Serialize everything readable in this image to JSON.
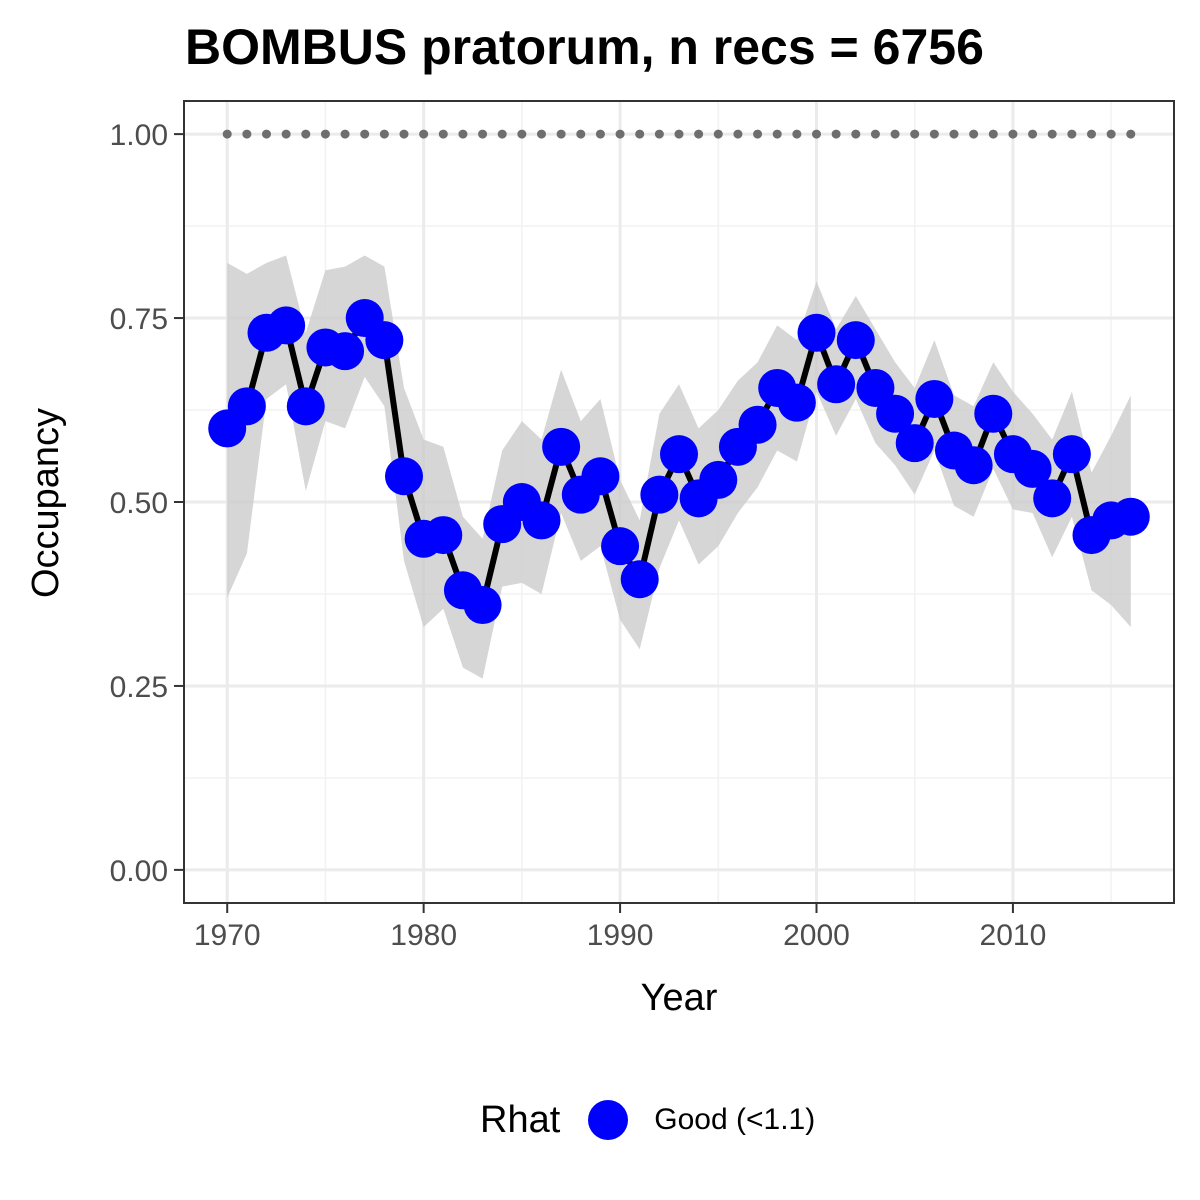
{
  "chart_data": {
    "type": "line",
    "title": "BOMBUS pratorum, n recs = 6756",
    "xlabel": "Year",
    "ylabel": "Occupancy",
    "xlim": [
      1967.8,
      2018.2
    ],
    "ylim": [
      -0.045,
      1.045
    ],
    "x_ticks": [
      1970,
      1980,
      1990,
      2000,
      2010
    ],
    "x_tick_labels": [
      "1970",
      "1980",
      "1990",
      "2000",
      "2010"
    ],
    "y_ticks": [
      0,
      0.25,
      0.5,
      0.75,
      1
    ],
    "y_tick_labels": [
      "0.00",
      "0.25",
      "0.50",
      "0.75",
      "1.00"
    ],
    "grid": true,
    "legend": {
      "position": "bottom",
      "title": "Rhat",
      "entries": [
        "Good (<1.1)"
      ]
    },
    "colors": {
      "points": "#0000ff",
      "line": "#000000",
      "ribbon": "#cccccc",
      "reference": "#6e6e6e"
    },
    "x": [
      1970,
      1971,
      1972,
      1973,
      1974,
      1975,
      1976,
      1977,
      1978,
      1979,
      1980,
      1981,
      1982,
      1983,
      1984,
      1985,
      1986,
      1987,
      1988,
      1989,
      1990,
      1991,
      1992,
      1993,
      1994,
      1995,
      1996,
      1997,
      1998,
      1999,
      2000,
      2001,
      2002,
      2003,
      2004,
      2005,
      2006,
      2007,
      2008,
      2009,
      2010,
      2011,
      2012,
      2013,
      2014,
      2015,
      2016
    ],
    "series": [
      {
        "name": "Good (<1.1)",
        "values": [
          0.6,
          0.63,
          0.73,
          0.74,
          0.63,
          0.71,
          0.705,
          0.75,
          0.72,
          0.535,
          0.45,
          0.455,
          0.38,
          0.36,
          0.47,
          0.5,
          0.475,
          0.575,
          0.51,
          0.535,
          0.44,
          0.395,
          0.51,
          0.565,
          0.505,
          0.53,
          0.575,
          0.605,
          0.655,
          0.635,
          0.73,
          0.66,
          0.72,
          0.655,
          0.62,
          0.58,
          0.64,
          0.57,
          0.55,
          0.62,
          0.565,
          0.545,
          0.505,
          0.565,
          0.455,
          0.475,
          0.48
        ],
        "lower": [
          0.37,
          0.43,
          0.64,
          0.66,
          0.515,
          0.61,
          0.6,
          0.67,
          0.63,
          0.42,
          0.33,
          0.355,
          0.275,
          0.26,
          0.385,
          0.39,
          0.375,
          0.485,
          0.42,
          0.44,
          0.34,
          0.3,
          0.41,
          0.475,
          0.415,
          0.44,
          0.485,
          0.52,
          0.57,
          0.555,
          0.65,
          0.59,
          0.64,
          0.58,
          0.55,
          0.51,
          0.57,
          0.495,
          0.48,
          0.545,
          0.49,
          0.485,
          0.425,
          0.48,
          0.38,
          0.36,
          0.33
        ],
        "upper": [
          0.825,
          0.81,
          0.825,
          0.835,
          0.73,
          0.815,
          0.82,
          0.835,
          0.82,
          0.655,
          0.585,
          0.575,
          0.48,
          0.45,
          0.57,
          0.61,
          0.585,
          0.68,
          0.61,
          0.64,
          0.53,
          0.475,
          0.62,
          0.66,
          0.6,
          0.625,
          0.665,
          0.69,
          0.74,
          0.72,
          0.8,
          0.735,
          0.78,
          0.735,
          0.69,
          0.655,
          0.72,
          0.645,
          0.63,
          0.69,
          0.65,
          0.62,
          0.585,
          0.65,
          0.54,
          0.59,
          0.645
        ]
      }
    ],
    "reference_line": {
      "y": 1.0,
      "x": [
        1970,
        1971,
        1972,
        1973,
        1974,
        1975,
        1976,
        1977,
        1978,
        1979,
        1980,
        1981,
        1982,
        1983,
        1984,
        1985,
        1986,
        1987,
        1988,
        1989,
        1990,
        1991,
        1992,
        1993,
        1994,
        1995,
        1996,
        1997,
        1998,
        1999,
        2000,
        2001,
        2002,
        2003,
        2004,
        2005,
        2006,
        2007,
        2008,
        2009,
        2010,
        2011,
        2012,
        2013,
        2014,
        2015,
        2016
      ]
    }
  }
}
